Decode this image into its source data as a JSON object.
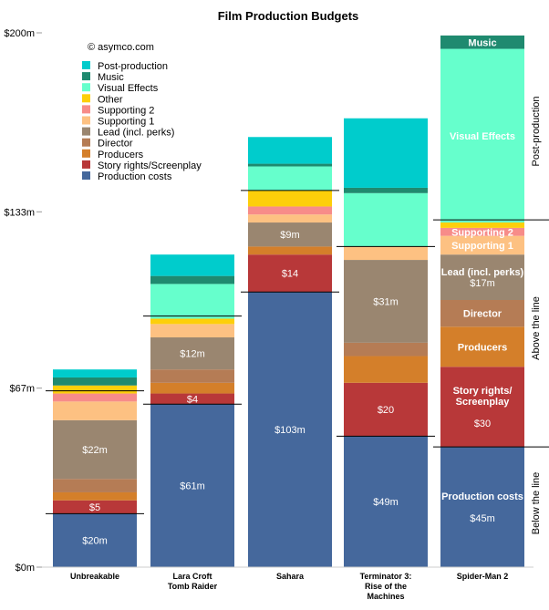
{
  "chart_data": {
    "type": "bar",
    "stacked": true,
    "title": "Film Production Budgets",
    "credit": "© asymco.com",
    "y_tick_labels": [
      "$200m",
      "$133m",
      "$67m",
      "$0m"
    ],
    "y_tick_values": [
      200,
      133,
      67,
      0
    ],
    "ylim": [
      0,
      200
    ],
    "grid": false,
    "legend_position": "top-left",
    "categories": [
      {
        "id": "unbreakable",
        "label_lines": [
          "Unbreakable"
        ]
      },
      {
        "id": "lara",
        "label_lines": [
          "Lara Croft",
          "Tomb Raider"
        ]
      },
      {
        "id": "sahara",
        "label_lines": [
          "Sahara"
        ]
      },
      {
        "id": "t3",
        "label_lines": [
          "Terminator 3:",
          "Rise of the",
          "Machines"
        ]
      },
      {
        "id": "spiderman",
        "label_lines": [
          "Spider-Man 2"
        ]
      }
    ],
    "series": [
      {
        "key": "production",
        "name": "Production costs",
        "color": "#45689c",
        "values": [
          20,
          61,
          103,
          49,
          45
        ]
      },
      {
        "key": "story",
        "name": "Story rights/Screenplay",
        "color": "#b83839",
        "values": [
          5,
          4,
          14,
          20,
          30
        ]
      },
      {
        "key": "producers",
        "name": "Producers",
        "color": "#d47f2a",
        "values": [
          3,
          4,
          3,
          10,
          15
        ]
      },
      {
        "key": "director",
        "name": "Director",
        "color": "#b57c55",
        "values": [
          5,
          5,
          0,
          5,
          10
        ]
      },
      {
        "key": "lead",
        "name": "Lead (incl. perks)",
        "color": "#9a8670",
        "values": [
          22,
          12,
          9,
          31,
          17
        ]
      },
      {
        "key": "supporting1",
        "name": "Supporting 1",
        "color": "#fdc182",
        "values": [
          7,
          5,
          3,
          5,
          7
        ]
      },
      {
        "key": "supporting2",
        "name": "Supporting 2",
        "color": "#f78c89",
        "values": [
          3,
          0,
          3,
          0,
          3
        ]
      },
      {
        "key": "other",
        "name": "Other",
        "color": "#fdcf0a",
        "values": [
          3,
          2,
          6,
          0,
          2
        ]
      },
      {
        "key": "vfx",
        "name": "Visual Effects",
        "color": "#66ffcc",
        "values": [
          0,
          13,
          9,
          20,
          65
        ]
      },
      {
        "key": "music",
        "name": "Music",
        "color": "#1f8a6f",
        "values": [
          3,
          3,
          1,
          2,
          5
        ]
      },
      {
        "key": "post",
        "name": "Post-production",
        "color": "#00cccc",
        "values": [
          3,
          8,
          10,
          26,
          0
        ]
      }
    ],
    "legend_order": [
      "post",
      "music",
      "vfx",
      "other",
      "supporting2",
      "supporting1",
      "lead",
      "director",
      "producers",
      "story",
      "production"
    ],
    "value_labels": [
      {
        "cat": 0,
        "series": "production",
        "text": "$20m"
      },
      {
        "cat": 0,
        "series": "story",
        "text": "$5"
      },
      {
        "cat": 0,
        "series": "lead",
        "text": "$22m"
      },
      {
        "cat": 1,
        "series": "production",
        "text": "$61m"
      },
      {
        "cat": 1,
        "series": "story",
        "text": "$4"
      },
      {
        "cat": 1,
        "series": "lead",
        "text": "$12m"
      },
      {
        "cat": 2,
        "series": "production",
        "text": "$103m"
      },
      {
        "cat": 2,
        "series": "story",
        "text": "$14"
      },
      {
        "cat": 2,
        "series": "lead",
        "text": "$9m"
      },
      {
        "cat": 3,
        "series": "production",
        "text": "$49m"
      },
      {
        "cat": 3,
        "series": "story",
        "text": "$20"
      },
      {
        "cat": 3,
        "series": "lead",
        "text": "$31m"
      },
      {
        "cat": 4,
        "series": "production",
        "text_lines": [
          "Production costs",
          "",
          "$45m"
        ]
      },
      {
        "cat": 4,
        "series": "story",
        "text_lines": [
          "Story rights/",
          "Screenplay",
          "",
          "$30"
        ]
      },
      {
        "cat": 4,
        "series": "producers",
        "text_lines": [
          "Producers"
        ]
      },
      {
        "cat": 4,
        "series": "director",
        "text_lines": [
          "Director"
        ]
      },
      {
        "cat": 4,
        "series": "lead",
        "text_lines": [
          "Lead (incl. perks)",
          "$17m"
        ]
      },
      {
        "cat": 4,
        "series": "supporting1",
        "text_lines": [
          "Supporting 1"
        ]
      },
      {
        "cat": 4,
        "series": "supporting2",
        "text_lines": [
          "Supporting 2"
        ]
      },
      {
        "cat": 4,
        "series": "vfx",
        "text_lines": [
          "Visual Effects"
        ]
      },
      {
        "cat": 4,
        "series": "music",
        "text_lines": [
          "Music"
        ]
      }
    ],
    "divider_lines": [
      {
        "cat": 0,
        "value": 20
      },
      {
        "cat": 0,
        "value": 66
      },
      {
        "cat": 1,
        "value": 61
      },
      {
        "cat": 1,
        "value": 94
      },
      {
        "cat": 2,
        "value": 103
      },
      {
        "cat": 2,
        "value": 141
      },
      {
        "cat": 3,
        "value": 49
      },
      {
        "cat": 3,
        "value": 120
      },
      {
        "cat": 4,
        "value": 45
      },
      {
        "cat": 4,
        "value": 130
      }
    ],
    "side_labels": {
      "post_production": "Post-production",
      "above_the_line": "Above the line",
      "below_the_line": "Below the line"
    }
  }
}
